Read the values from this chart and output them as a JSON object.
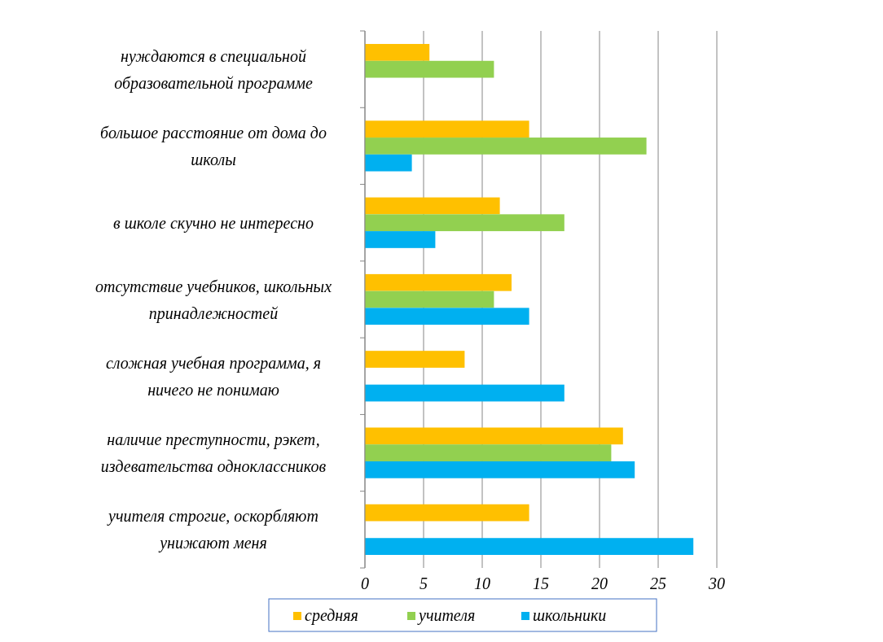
{
  "chart_data": {
    "type": "bar",
    "orientation": "horizontal",
    "categories": [
      "нуждаются в специальной образовательной программе",
      "большое расстояние от дома до школы",
      "в школе скучно не интересно",
      "отсутствие учебников, школьных принадлежностей",
      "сложная учебная программа, я ничего не понимаю",
      "наличие преступности, рэкет, издевательства одноклассников",
      "учителя строгие, оскорбляют унижают меня"
    ],
    "series": [
      {
        "name": "средняя",
        "color": "#ffc000",
        "values": [
          5.5,
          14,
          11.5,
          12.5,
          8.5,
          22,
          14
        ]
      },
      {
        "name": "учителя",
        "color": "#92d050",
        "values": [
          11,
          24,
          17,
          11,
          null,
          21,
          null
        ]
      },
      {
        "name": "школьники",
        "color": "#00b0f0",
        "values": [
          null,
          4,
          6,
          14,
          17,
          23,
          28
        ]
      }
    ],
    "xlim": [
      0,
      30
    ],
    "xticks": [
      0,
      5,
      10,
      15,
      20,
      25,
      30
    ],
    "grid": "x",
    "legend": "bottom"
  }
}
